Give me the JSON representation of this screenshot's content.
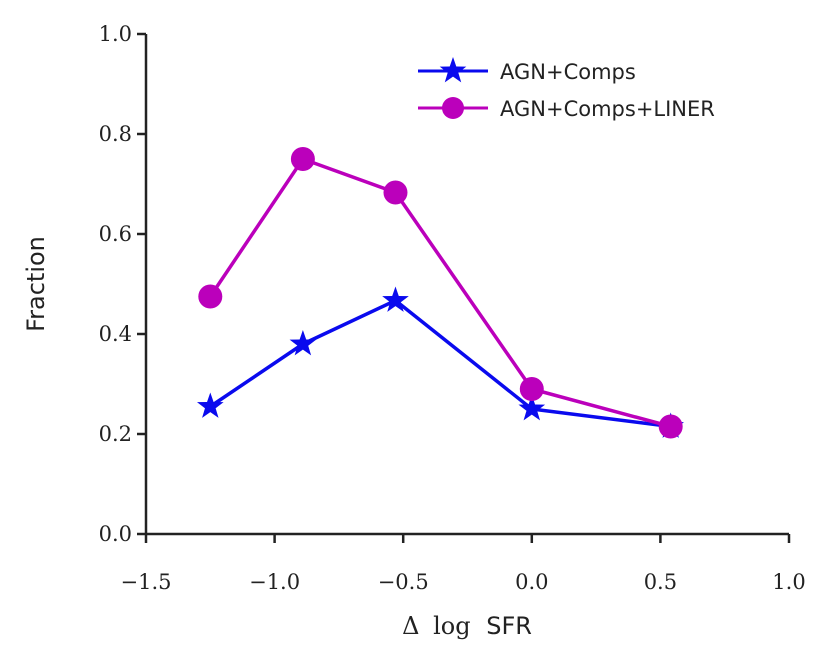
{
  "chart_data": {
    "type": "line",
    "title": "",
    "xlabel": "Δ log SFR",
    "xlabel_parts": {
      "delta": "Δ",
      "log": "log",
      "var": "SFR"
    },
    "ylabel": "Fraction",
    "xlim": [
      -1.5,
      1.0
    ],
    "ylim": [
      0.0,
      1.0
    ],
    "xticks": [
      -1.5,
      -1.0,
      -0.5,
      0.0,
      0.5,
      1.0
    ],
    "xtick_labels": [
      "−1.5",
      "−1.0",
      "−0.5",
      "0.0",
      "0.5",
      "1.0"
    ],
    "yticks": [
      0.0,
      0.2,
      0.4,
      0.6,
      0.8,
      1.0
    ],
    "ytick_labels": [
      "0.0",
      "0.2",
      "0.4",
      "0.6",
      "0.8",
      "1.0"
    ],
    "grid": false,
    "legend_position": "top-right",
    "series": [
      {
        "name": "AGN+Comps",
        "marker": "star",
        "color": "#0a0aee",
        "x": [
          -1.25,
          -0.89,
          -0.53,
          0.0,
          0.54
        ],
        "y": [
          0.255,
          0.38,
          0.467,
          0.25,
          0.215
        ]
      },
      {
        "name": "AGN+Comps+LINER",
        "marker": "circle",
        "color": "#bb00bb",
        "x": [
          -1.25,
          -0.89,
          -0.53,
          0.0,
          0.54
        ],
        "y": [
          0.475,
          0.75,
          0.683,
          0.29,
          0.215
        ]
      }
    ]
  }
}
